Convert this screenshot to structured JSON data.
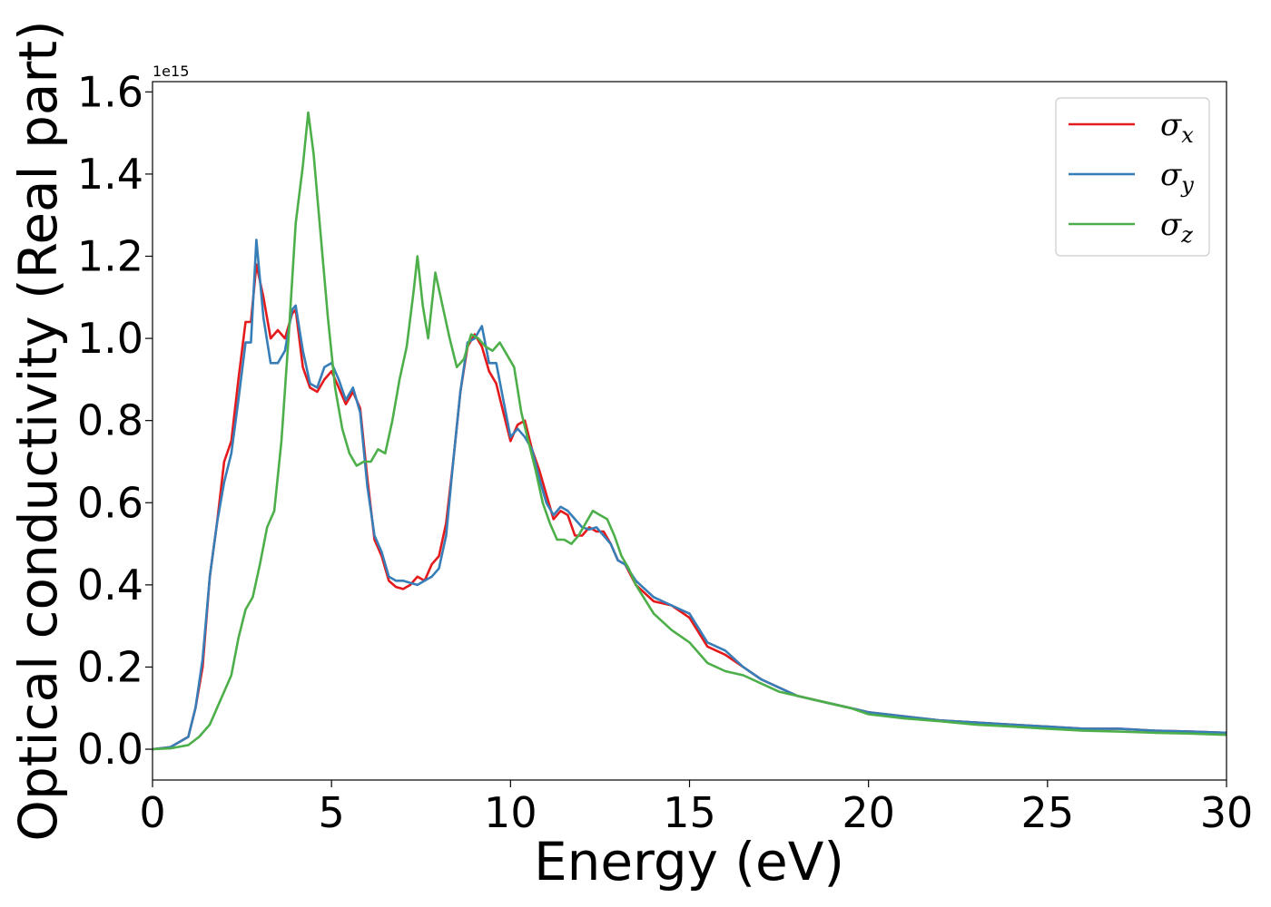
{
  "chart_data": {
    "type": "line",
    "title": "",
    "xlabel": "Energy (eV)",
    "ylabel": "Optical conductivity (Real part)",
    "y_offset_label": "1e15",
    "xlim": [
      0,
      30
    ],
    "ylim": [
      -0.075,
      1.625
    ],
    "xticks": [
      0,
      5,
      10,
      15,
      20,
      25,
      30
    ],
    "yticks": [
      0.0,
      0.2,
      0.4,
      0.6,
      0.8,
      1.0,
      1.2,
      1.4,
      1.6
    ],
    "xtick_labels": [
      "0",
      "5",
      "10",
      "15",
      "20",
      "25",
      "30"
    ],
    "ytick_labels": [
      "0.0",
      "0.2",
      "0.4",
      "0.6",
      "0.8",
      "1.0",
      "1.2",
      "1.4",
      "1.6"
    ],
    "grid": false,
    "legend_position": "top-right",
    "series": [
      {
        "name": "σx",
        "symbol": "σ",
        "subscript": "x",
        "color": "#e41a1c",
        "x": [
          0,
          0.5,
          1.0,
          1.2,
          1.4,
          1.6,
          1.8,
          2.0,
          2.2,
          2.4,
          2.6,
          2.75,
          2.9,
          3.1,
          3.3,
          3.5,
          3.7,
          3.9,
          4.0,
          4.2,
          4.4,
          4.6,
          4.8,
          5.0,
          5.2,
          5.4,
          5.6,
          5.8,
          6.0,
          6.2,
          6.4,
          6.6,
          6.8,
          7.0,
          7.2,
          7.4,
          7.6,
          7.8,
          8.0,
          8.2,
          8.4,
          8.6,
          8.8,
          9.0,
          9.2,
          9.4,
          9.6,
          9.8,
          10.0,
          10.2,
          10.4,
          10.6,
          10.8,
          11.0,
          11.2,
          11.4,
          11.6,
          11.8,
          12.0,
          12.2,
          12.4,
          12.6,
          12.8,
          13.0,
          13.2,
          13.5,
          14.0,
          14.5,
          15.0,
          15.5,
          16.0,
          16.5,
          17.0,
          17.5,
          18.0,
          18.5,
          19.0,
          19.5,
          20.0,
          21.0,
          22.0,
          23.0,
          24.0,
          25.0,
          26.0,
          27.0,
          28.0,
          29.0,
          30.0
        ],
        "values": [
          0.0,
          0.005,
          0.03,
          0.1,
          0.2,
          0.42,
          0.55,
          0.7,
          0.75,
          0.9,
          1.04,
          1.04,
          1.18,
          1.1,
          1.0,
          1.02,
          1.0,
          1.06,
          1.07,
          0.93,
          0.88,
          0.87,
          0.9,
          0.92,
          0.88,
          0.84,
          0.87,
          0.83,
          0.66,
          0.51,
          0.47,
          0.41,
          0.395,
          0.39,
          0.4,
          0.42,
          0.41,
          0.45,
          0.47,
          0.55,
          0.7,
          0.87,
          0.98,
          1.01,
          0.98,
          0.92,
          0.89,
          0.82,
          0.75,
          0.79,
          0.8,
          0.73,
          0.68,
          0.62,
          0.56,
          0.58,
          0.57,
          0.52,
          0.52,
          0.54,
          0.53,
          0.53,
          0.5,
          0.46,
          0.45,
          0.4,
          0.36,
          0.35,
          0.32,
          0.25,
          0.23,
          0.2,
          0.17,
          0.15,
          0.13,
          0.12,
          0.11,
          0.1,
          0.09,
          0.08,
          0.07,
          0.065,
          0.06,
          0.055,
          0.05,
          0.05,
          0.045,
          0.043,
          0.04
        ]
      },
      {
        "name": "σy",
        "symbol": "σ",
        "subscript": "y",
        "color": "#377eb8",
        "x": [
          0,
          0.5,
          1.0,
          1.2,
          1.4,
          1.6,
          1.8,
          2.0,
          2.2,
          2.4,
          2.6,
          2.75,
          2.9,
          3.1,
          3.3,
          3.5,
          3.7,
          3.9,
          4.0,
          4.2,
          4.4,
          4.6,
          4.8,
          5.0,
          5.2,
          5.4,
          5.6,
          5.8,
          6.0,
          6.2,
          6.4,
          6.6,
          6.8,
          7.0,
          7.2,
          7.4,
          7.6,
          7.8,
          8.0,
          8.2,
          8.4,
          8.6,
          8.8,
          9.0,
          9.2,
          9.4,
          9.6,
          9.8,
          10.0,
          10.2,
          10.4,
          10.6,
          10.8,
          11.0,
          11.2,
          11.4,
          11.6,
          11.8,
          12.0,
          12.2,
          12.4,
          12.6,
          12.8,
          13.0,
          13.2,
          13.5,
          14.0,
          14.5,
          15.0,
          15.5,
          16.0,
          16.5,
          17.0,
          17.5,
          18.0,
          18.5,
          19.0,
          19.5,
          20.0,
          21.0,
          22.0,
          23.0,
          24.0,
          25.0,
          26.0,
          27.0,
          28.0,
          29.0,
          30.0
        ],
        "values": [
          0.0,
          0.005,
          0.03,
          0.1,
          0.22,
          0.42,
          0.55,
          0.65,
          0.72,
          0.85,
          0.99,
          0.99,
          1.24,
          1.05,
          0.94,
          0.94,
          0.97,
          1.07,
          1.08,
          0.97,
          0.89,
          0.88,
          0.93,
          0.94,
          0.9,
          0.85,
          0.88,
          0.82,
          0.64,
          0.52,
          0.48,
          0.42,
          0.41,
          0.41,
          0.405,
          0.4,
          0.41,
          0.42,
          0.44,
          0.52,
          0.7,
          0.87,
          0.99,
          1.0,
          1.03,
          0.94,
          0.94,
          0.85,
          0.76,
          0.78,
          0.76,
          0.73,
          0.66,
          0.6,
          0.57,
          0.59,
          0.58,
          0.56,
          0.54,
          0.535,
          0.54,
          0.52,
          0.5,
          0.46,
          0.45,
          0.41,
          0.37,
          0.35,
          0.33,
          0.26,
          0.24,
          0.2,
          0.17,
          0.15,
          0.13,
          0.12,
          0.11,
          0.1,
          0.09,
          0.08,
          0.07,
          0.065,
          0.06,
          0.055,
          0.05,
          0.05,
          0.045,
          0.043,
          0.04
        ]
      },
      {
        "name": "σz",
        "symbol": "σ",
        "subscript": "z",
        "color": "#4daf4a",
        "x": [
          0,
          0.5,
          1.0,
          1.3,
          1.6,
          1.8,
          2.0,
          2.2,
          2.4,
          2.6,
          2.8,
          3.0,
          3.2,
          3.4,
          3.6,
          3.8,
          4.0,
          4.2,
          4.35,
          4.5,
          4.7,
          4.9,
          5.1,
          5.3,
          5.5,
          5.7,
          5.9,
          6.1,
          6.3,
          6.5,
          6.7,
          6.9,
          7.1,
          7.3,
          7.4,
          7.55,
          7.7,
          7.9,
          8.1,
          8.3,
          8.5,
          8.7,
          8.9,
          9.1,
          9.3,
          9.5,
          9.7,
          9.9,
          10.1,
          10.3,
          10.5,
          10.7,
          10.9,
          11.1,
          11.3,
          11.5,
          11.7,
          11.9,
          12.1,
          12.3,
          12.5,
          12.7,
          12.9,
          13.1,
          13.3,
          13.5,
          14.0,
          14.5,
          15.0,
          15.5,
          16.0,
          16.5,
          17.0,
          17.5,
          18.0,
          18.5,
          19.0,
          19.5,
          20.0,
          21.0,
          22.0,
          23.0,
          24.0,
          25.0,
          26.0,
          27.0,
          28.0,
          29.0,
          30.0
        ],
        "values": [
          0.0,
          0.002,
          0.01,
          0.03,
          0.06,
          0.1,
          0.14,
          0.18,
          0.27,
          0.34,
          0.37,
          0.45,
          0.54,
          0.58,
          0.75,
          1.0,
          1.28,
          1.42,
          1.55,
          1.45,
          1.25,
          1.05,
          0.88,
          0.78,
          0.72,
          0.69,
          0.7,
          0.7,
          0.73,
          0.72,
          0.8,
          0.9,
          0.98,
          1.12,
          1.2,
          1.08,
          1.0,
          1.16,
          1.08,
          1.0,
          0.93,
          0.95,
          1.01,
          1.0,
          0.98,
          0.97,
          0.99,
          0.96,
          0.93,
          0.82,
          0.75,
          0.68,
          0.6,
          0.55,
          0.51,
          0.51,
          0.5,
          0.52,
          0.55,
          0.58,
          0.57,
          0.56,
          0.52,
          0.47,
          0.44,
          0.4,
          0.33,
          0.29,
          0.26,
          0.21,
          0.19,
          0.18,
          0.16,
          0.14,
          0.13,
          0.12,
          0.11,
          0.1,
          0.085,
          0.075,
          0.068,
          0.06,
          0.055,
          0.05,
          0.045,
          0.043,
          0.04,
          0.038,
          0.035
        ]
      }
    ]
  }
}
